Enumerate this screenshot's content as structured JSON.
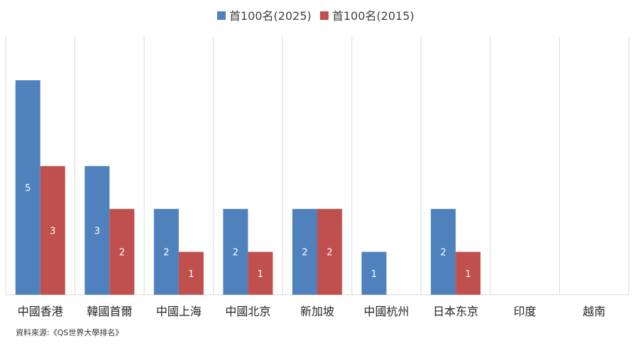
{
  "chart_data": {
    "type": "bar",
    "categories": [
      "中國香港",
      "韓國首爾",
      "中國上海",
      "中國北京",
      "新加坡",
      "中國杭州",
      "日本东京",
      "印度",
      "越南"
    ],
    "series": [
      {
        "name": "首100名(2025)",
        "color": "#4F81BD",
        "values": [
          5,
          3,
          2,
          2,
          2,
          1,
          2,
          0,
          0
        ]
      },
      {
        "name": "首100名(2015)",
        "color": "#C0504D",
        "values": [
          3,
          2,
          1,
          1,
          2,
          0,
          1,
          0,
          0
        ]
      }
    ],
    "ylim": [
      0,
      6
    ],
    "grid": "vertical separators only",
    "legend_position": "top-center",
    "data_labels": true
  },
  "source_note": "資料來源:《QS世界大學排名》"
}
